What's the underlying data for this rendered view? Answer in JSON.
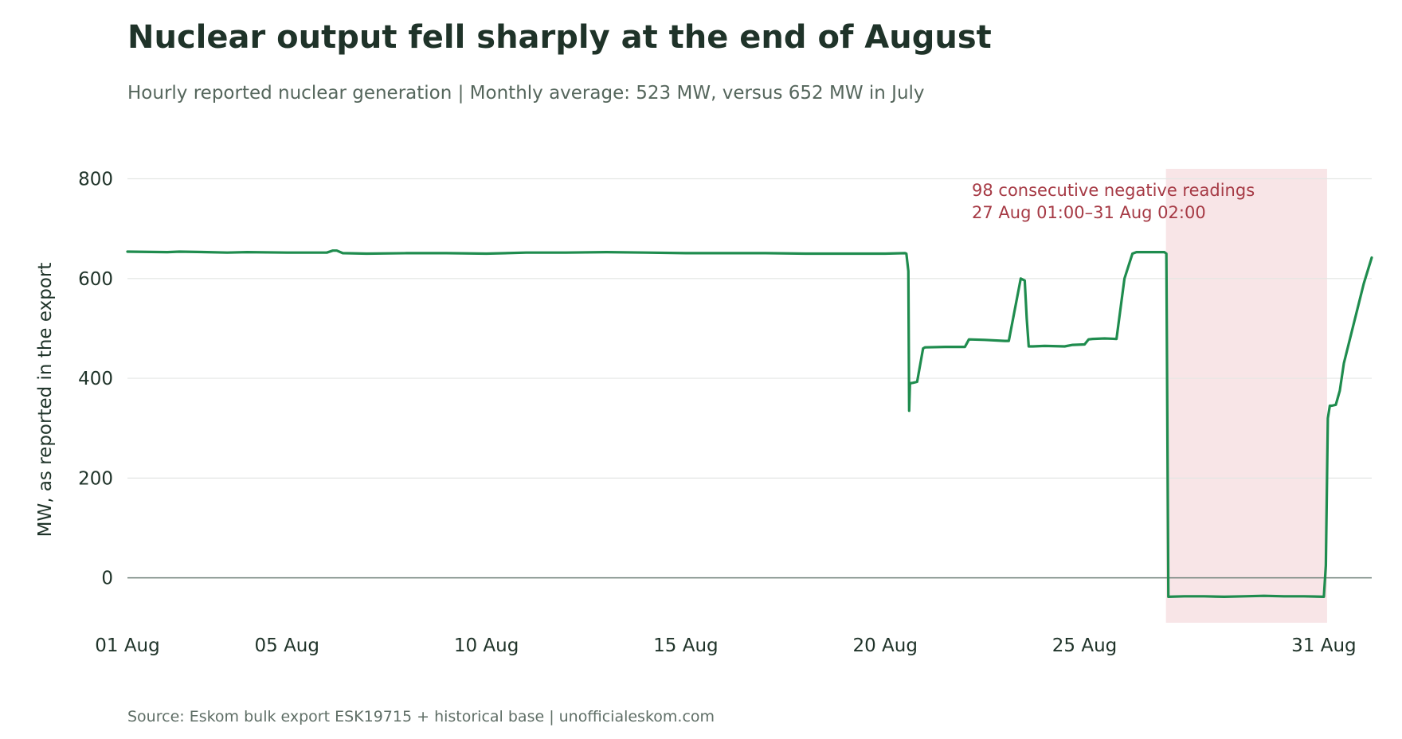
{
  "header": {
    "title": "Nuclear output fell sharply at the end of August",
    "subtitle": "Hourly reported nuclear generation  |  Monthly average: 523 MW, versus 652 MW in July"
  },
  "footer": {
    "source": "Source: Eskom bulk export ESK19715 + historical base  |  unofficialeskom.com"
  },
  "colors": {
    "line": "#1f8c4e",
    "highlight": "#f4d7da",
    "annotation": "#a63a45",
    "grid": "#e3e6e4",
    "zero_line": "#6f8179",
    "text": "#1f3329"
  },
  "chart_data": {
    "type": "line",
    "title": "Nuclear output fell sharply at the end of August",
    "subtitle": "Hourly reported nuclear generation  |  Monthly average: 523 MW, versus 652 MW in July",
    "xlabel": "",
    "ylabel": "MW, as reported in the export",
    "ylim": [
      -90,
      820
    ],
    "xlim_days": [
      1,
      32.2
    ],
    "yticks": [
      0,
      200,
      400,
      600,
      800
    ],
    "xticks": [
      {
        "day": 1,
        "label": "01 Aug"
      },
      {
        "day": 5,
        "label": "05 Aug"
      },
      {
        "day": 10,
        "label": "10 Aug"
      },
      {
        "day": 15,
        "label": "15 Aug"
      },
      {
        "day": 20,
        "label": "20 Aug"
      },
      {
        "day": 25,
        "label": "25 Aug"
      },
      {
        "day": 31,
        "label": "31 Aug"
      }
    ],
    "grid": true,
    "series": [
      {
        "x_day": [
          1.0,
          2.0,
          2.3,
          3.0,
          3.5,
          4.0,
          5.0,
          6.0,
          6.15,
          6.25,
          6.4,
          7.0,
          8.0,
          9.0,
          10.0,
          11.0,
          12.0,
          13.0,
          14.0,
          15.0,
          16.0,
          17.0,
          18.0,
          18.6,
          19.0,
          19.5,
          20.0,
          20.5,
          20.53,
          20.58,
          20.6,
          20.62,
          20.7,
          20.8,
          20.95,
          21.0,
          21.5,
          22.0,
          22.1,
          22.5,
          23.0,
          23.1,
          23.4,
          23.5,
          23.55,
          23.6,
          23.7,
          24.0,
          24.5,
          24.7,
          25.0,
          25.1,
          25.2,
          25.5,
          25.8,
          26.0,
          26.2,
          26.3,
          26.5,
          26.8,
          27.0,
          27.05,
          27.1,
          27.5,
          28.0,
          28.5,
          29.0,
          29.5,
          30.0,
          30.5,
          31.0,
          31.05,
          31.1,
          31.15,
          31.2,
          31.3,
          31.4,
          31.5,
          32.0,
          32.2
        ],
        "y": [
          654,
          653,
          654,
          653,
          652,
          653,
          652,
          652,
          656,
          656,
          651,
          650,
          651,
          651,
          650,
          652,
          652,
          653,
          652,
          651,
          651,
          651,
          650,
          650,
          650,
          650,
          650,
          651,
          650,
          615,
          335,
          390,
          391,
          393,
          460,
          462,
          463,
          463,
          478,
          477,
          475,
          475,
          600,
          596,
          520,
          464,
          464,
          465,
          464,
          467,
          468,
          478,
          479,
          480,
          479,
          600,
          650,
          653,
          653,
          653,
          653,
          650,
          -38,
          -37,
          -37,
          -38,
          -37,
          -36,
          -37,
          -37,
          -38,
          25,
          320,
          345,
          345,
          347,
          375,
          430,
          590,
          642
        ]
      }
    ],
    "highlight": {
      "start_day": 27.04,
      "end_day": 31.08,
      "label_line1": "98 consecutive negative readings",
      "label_line2": "27 Aug 01:00–31 Aug 02:00"
    }
  }
}
